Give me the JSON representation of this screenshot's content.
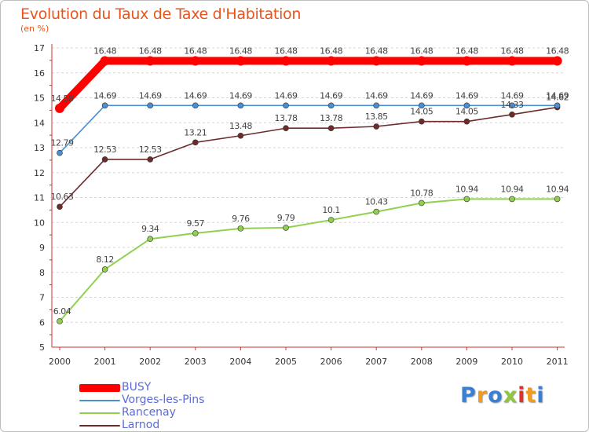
{
  "chart_data": {
    "type": "line",
    "title": "Evolution du Taux de Taxe d'Habitation",
    "unit_label": "(en %)",
    "x": [
      "2000",
      "2001",
      "2002",
      "2003",
      "2004",
      "2005",
      "2006",
      "2007",
      "2008",
      "2009",
      "2010",
      "2011"
    ],
    "ylim": [
      5,
      17
    ],
    "yticks": [
      5,
      6,
      7,
      8,
      9,
      10,
      11,
      12,
      13,
      14,
      15,
      16,
      17
    ],
    "grid": "horizontal dashed",
    "legend_position": "bottom-left",
    "series": [
      {
        "name": "BUSY",
        "color": "#ff0000",
        "values": [
          14.58,
          16.48,
          16.48,
          16.48,
          16.48,
          16.48,
          16.48,
          16.48,
          16.48,
          16.48,
          16.48,
          16.48
        ],
        "labels": [
          "14.58",
          "16.48",
          "16.48",
          "16.48",
          "16.48",
          "16.48",
          "16.48",
          "16.48",
          "16.48",
          "16.48",
          "16.48",
          "16.48"
        ]
      },
      {
        "name": "Vorges-les-Pins",
        "color": "#4a8fd1",
        "values": [
          12.79,
          14.69,
          14.69,
          14.69,
          14.69,
          14.69,
          14.69,
          14.69,
          14.69,
          14.69,
          14.69,
          14.69
        ],
        "labels": [
          "12.79",
          "14.69",
          "14.69",
          "14.69",
          "14.69",
          "14.69",
          "14.69",
          "14.69",
          "14.69",
          "14.69",
          "14.69",
          "14.69"
        ]
      },
      {
        "name": "Rancenay",
        "color": "#8fd14f",
        "values": [
          6.04,
          8.12,
          9.34,
          9.57,
          9.76,
          9.79,
          10.1,
          10.43,
          10.78,
          10.94,
          10.94,
          10.94
        ],
        "labels": [
          "6.04",
          "8.12",
          "9.34",
          "9.57",
          "9.76",
          "9.79",
          "10.1",
          "10.43",
          "10.78",
          "10.94",
          "10.94",
          "10.94"
        ]
      },
      {
        "name": "Larnod",
        "color": "#6e2b2b",
        "values": [
          10.63,
          12.53,
          12.53,
          13.21,
          13.48,
          13.78,
          13.78,
          13.85,
          14.05,
          14.05,
          14.33,
          14.62
        ],
        "labels": [
          "10.63",
          "12.53",
          "12.53",
          "13.21",
          "13.48",
          "13.78",
          "13.78",
          "13.85",
          "14.05",
          "14.05",
          "14.33",
          "14.62"
        ]
      }
    ]
  },
  "logo": {
    "letters": [
      "P",
      "r",
      "o",
      "x",
      "i",
      "t",
      "i"
    ],
    "colors": [
      "#3a7fd6",
      "#f29a1f",
      "#3a7fd6",
      "#8fc63f",
      "#e0312f",
      "#f29a1f",
      "#3a7fd6"
    ]
  }
}
